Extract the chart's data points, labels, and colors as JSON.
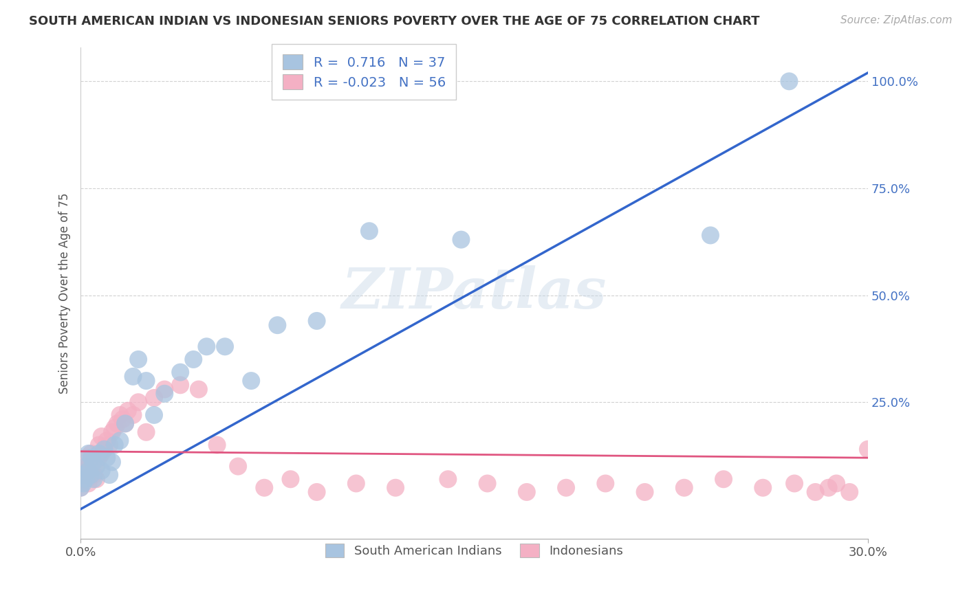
{
  "title": "SOUTH AMERICAN INDIAN VS INDONESIAN SENIORS POVERTY OVER THE AGE OF 75 CORRELATION CHART",
  "source": "Source: ZipAtlas.com",
  "ylabel": "Seniors Poverty Over the Age of 75",
  "xlim": [
    0.0,
    0.3
  ],
  "ylim": [
    -0.07,
    1.08
  ],
  "yticks": [
    0.25,
    0.5,
    0.75,
    1.0
  ],
  "ytick_labels": [
    "25.0%",
    "50.0%",
    "75.0%",
    "100.0%"
  ],
  "xticks": [
    0.0,
    0.3
  ],
  "xtick_labels": [
    "0.0%",
    "30.0%"
  ],
  "blue_R": 0.716,
  "blue_N": 37,
  "pink_R": -0.023,
  "pink_N": 56,
  "blue_color": "#a8c4e0",
  "pink_color": "#f4b0c4",
  "blue_line_color": "#3366cc",
  "pink_line_color": "#e05580",
  "watermark": "ZIPatlas",
  "blue_scatter_x": [
    0.0,
    0.001,
    0.001,
    0.002,
    0.002,
    0.003,
    0.003,
    0.004,
    0.004,
    0.005,
    0.005,
    0.006,
    0.007,
    0.008,
    0.009,
    0.01,
    0.011,
    0.012,
    0.013,
    0.015,
    0.017,
    0.02,
    0.022,
    0.025,
    0.028,
    0.032,
    0.038,
    0.043,
    0.048,
    0.055,
    0.065,
    0.075,
    0.09,
    0.11,
    0.145,
    0.24,
    0.27
  ],
  "blue_scatter_y": [
    0.05,
    0.06,
    0.08,
    0.07,
    0.1,
    0.09,
    0.13,
    0.08,
    0.12,
    0.07,
    0.11,
    0.1,
    0.13,
    0.09,
    0.14,
    0.12,
    0.08,
    0.11,
    0.15,
    0.16,
    0.2,
    0.31,
    0.35,
    0.3,
    0.22,
    0.27,
    0.32,
    0.35,
    0.38,
    0.38,
    0.3,
    0.43,
    0.44,
    0.65,
    0.63,
    0.64,
    1.0
  ],
  "pink_scatter_x": [
    0.0,
    0.001,
    0.001,
    0.002,
    0.002,
    0.003,
    0.003,
    0.004,
    0.004,
    0.005,
    0.005,
    0.006,
    0.006,
    0.007,
    0.007,
    0.008,
    0.008,
    0.009,
    0.01,
    0.011,
    0.012,
    0.013,
    0.014,
    0.015,
    0.016,
    0.017,
    0.018,
    0.02,
    0.022,
    0.025,
    0.028,
    0.032,
    0.038,
    0.045,
    0.052,
    0.06,
    0.07,
    0.08,
    0.09,
    0.105,
    0.12,
    0.14,
    0.155,
    0.17,
    0.185,
    0.2,
    0.215,
    0.23,
    0.245,
    0.26,
    0.272,
    0.28,
    0.285,
    0.288,
    0.293,
    0.3
  ],
  "pink_scatter_y": [
    0.05,
    0.07,
    0.09,
    0.08,
    0.12,
    0.06,
    0.1,
    0.09,
    0.13,
    0.08,
    0.11,
    0.07,
    0.1,
    0.12,
    0.15,
    0.13,
    0.17,
    0.14,
    0.16,
    0.15,
    0.18,
    0.19,
    0.2,
    0.22,
    0.21,
    0.2,
    0.23,
    0.22,
    0.25,
    0.18,
    0.26,
    0.28,
    0.29,
    0.28,
    0.15,
    0.1,
    0.05,
    0.07,
    0.04,
    0.06,
    0.05,
    0.07,
    0.06,
    0.04,
    0.05,
    0.06,
    0.04,
    0.05,
    0.07,
    0.05,
    0.06,
    0.04,
    0.05,
    0.06,
    0.04,
    0.14
  ],
  "blue_line_x": [
    0.0,
    0.3
  ],
  "blue_line_y": [
    0.0,
    1.02
  ],
  "pink_line_x": [
    0.0,
    0.3
  ],
  "pink_line_y": [
    0.135,
    0.12
  ]
}
